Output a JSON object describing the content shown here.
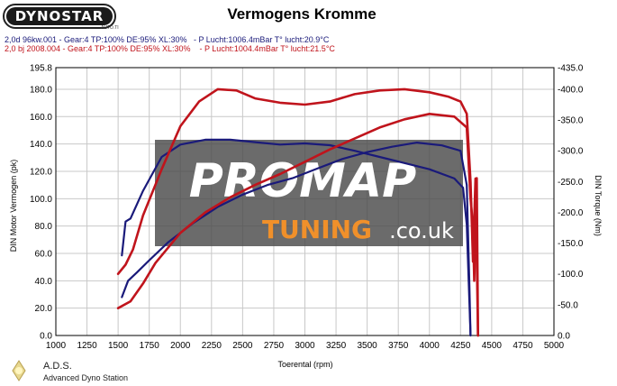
{
  "header": {
    "logo_text": "DYNOSTAR",
    "logo_sub": "AUTO.TI",
    "title": "Vermogens Kromme"
  },
  "runs": [
    "2,0d 96kw.001 - Gear:4 TP:100% DE:95% XL:30%   - P Lucht:1006.4mBar T° lucht:20.9°C",
    "2,0 bj 2008.004 - Gear:4 TP:100% DE:95% XL:30%    - P Lucht:1004.4mBar T° lucht:21.5°C"
  ],
  "watermark": {
    "brand_top": "PROMAP",
    "brand_bottom": "TUNING",
    "domain": ".co.uk"
  },
  "footer": {
    "name": "A.D.S.",
    "full": "Advanced Dyno Station"
  },
  "colors": {
    "run1": "#1a1a7a",
    "run2": "#c0141c",
    "grid": "#c8c8c8",
    "watermark_bg": "#4a4a4a"
  },
  "chart_data": {
    "type": "line",
    "xlabel": "Toerental (rpm)",
    "ylabel": "DIN Motor Vermogen (pk)",
    "y2label": "DIN Torque (Nm)",
    "xlim": [
      1000,
      5000
    ],
    "ylim": [
      0,
      195.8
    ],
    "y2lim": [
      0,
      435
    ],
    "x_ticks": [
      "1000",
      "1250",
      "1500",
      "1750",
      "2000",
      "2250",
      "2500",
      "2750",
      "3000",
      "3250",
      "3500",
      "3750",
      "4000",
      "4250",
      "4500",
      "4750",
      "5000"
    ],
    "y_ticks": [
      "0.0",
      "20.0",
      "40.0",
      "60.0",
      "80.0",
      "100.0",
      "120.0",
      "140.0",
      "160.0",
      "180.0",
      "195.8"
    ],
    "y2_ticks": [
      "0.0",
      "-50.0",
      "-100.0",
      "-150.0",
      "-200.0",
      "-250.0",
      "-300.0",
      "-350.0",
      "-400.0",
      "-435.0"
    ],
    "grid": true,
    "series": [
      {
        "key": "run1_power",
        "run": 1,
        "axis": "left",
        "x": [
          1530,
          1580,
          1650,
          1750,
          1900,
          2100,
          2300,
          2500,
          2700,
          2900,
          3100,
          3300,
          3500,
          3700,
          3900,
          4100,
          4250,
          4300,
          4320,
          4330
        ],
        "y": [
          28,
          40,
          46,
          55,
          68,
          82,
          94,
          103,
          110,
          115,
          122,
          129,
          134,
          138,
          141,
          139,
          135,
          110,
          40,
          0
        ]
      },
      {
        "key": "run1_torque",
        "run": 1,
        "axis": "right",
        "x": [
          1530,
          1560,
          1600,
          1700,
          1850,
          2000,
          2200,
          2400,
          2600,
          2800,
          3000,
          3200,
          3400,
          3600,
          3800,
          4000,
          4200,
          4270,
          4300,
          4320,
          4330
        ],
        "y": [
          130,
          185,
          190,
          235,
          290,
          310,
          318,
          318,
          314,
          310,
          312,
          309,
          300,
          290,
          280,
          270,
          255,
          240,
          180,
          60,
          0
        ]
      },
      {
        "key": "run2_power",
        "run": 2,
        "axis": "left",
        "x": [
          1500,
          1600,
          1700,
          1800,
          2000,
          2200,
          2400,
          2600,
          2800,
          3000,
          3200,
          3400,
          3600,
          3800,
          4000,
          4200,
          4300,
          4330,
          4350,
          4360,
          4380,
          4390
        ],
        "y": [
          20,
          25,
          38,
          53,
          75,
          90,
          101,
          110,
          118,
          127,
          136,
          144,
          152,
          158,
          162,
          160,
          152,
          100,
          80,
          40,
          115,
          0
        ]
      },
      {
        "key": "run2_torque",
        "run": 2,
        "axis": "right",
        "x": [
          1500,
          1560,
          1620,
          1700,
          1850,
          2000,
          2150,
          2300,
          2450,
          2600,
          2800,
          3000,
          3200,
          3400,
          3600,
          3800,
          4000,
          4150,
          4250,
          4300,
          4330,
          4350,
          4370,
          4390
        ],
        "y": [
          100,
          115,
          140,
          195,
          270,
          340,
          380,
          400,
          398,
          385,
          378,
          375,
          380,
          392,
          398,
          400,
          395,
          388,
          380,
          360,
          250,
          120,
          255,
          0
        ]
      }
    ]
  }
}
